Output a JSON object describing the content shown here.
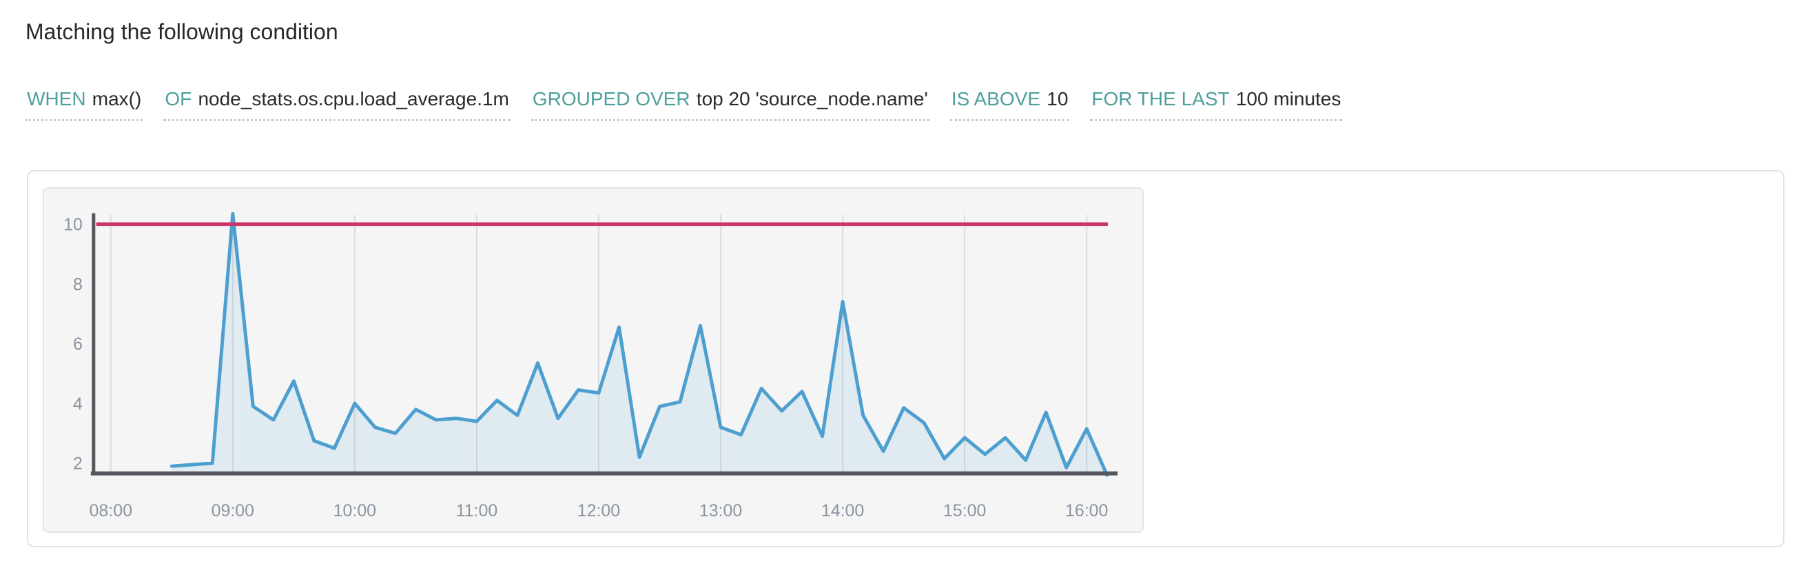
{
  "header": {
    "title": "Matching the following condition"
  },
  "expression": {
    "segments": [
      {
        "keyword": "WHEN",
        "value": "max()"
      },
      {
        "keyword": "OF",
        "value": "node_stats.os.cpu.load_average.1m"
      },
      {
        "keyword": "GROUPED OVER",
        "value": "top 20 'source_node.name'"
      },
      {
        "keyword": "IS ABOVE",
        "value": "10"
      },
      {
        "keyword": "FOR THE LAST",
        "value": "100 minutes"
      }
    ]
  },
  "colors": {
    "keyword_teal": "#4d9f9d",
    "value_text": "#2b2b2e",
    "threshold_line": "#cc3366",
    "series_line": "#4d9fcf",
    "series_fill": "rgba(77,159,207,0.12)",
    "axis": "#55575c",
    "grid": "#dcdcdc",
    "tick_label": "#8b95a0"
  },
  "chart_data": {
    "type": "line",
    "title": "",
    "xlabel": "",
    "ylabel": "",
    "x_ticks": [
      "08:00",
      "09:00",
      "10:00",
      "11:00",
      "12:00",
      "13:00",
      "14:00",
      "15:00",
      "16:00"
    ],
    "y_ticks": [
      2,
      4,
      6,
      8,
      10
    ],
    "ylim": [
      1.7,
      10.35
    ],
    "xlim_hours": [
      7.86,
      16.24
    ],
    "grid": true,
    "legend": "none",
    "threshold": 10,
    "series": [
      {
        "points": [
          [
            "08:30",
            1.9
          ],
          [
            "08:40",
            1.95
          ],
          [
            "08:50",
            2.0
          ],
          [
            "09:00",
            10.35
          ],
          [
            "09:10",
            3.9
          ],
          [
            "09:20",
            3.45
          ],
          [
            "09:30",
            4.75
          ],
          [
            "09:40",
            2.75
          ],
          [
            "09:50",
            2.5
          ],
          [
            "10:00",
            4.0
          ],
          [
            "10:10",
            3.2
          ],
          [
            "10:20",
            3.0
          ],
          [
            "10:30",
            3.8
          ],
          [
            "10:40",
            3.45
          ],
          [
            "10:50",
            3.5
          ],
          [
            "11:00",
            3.4
          ],
          [
            "11:10",
            4.1
          ],
          [
            "11:20",
            3.6
          ],
          [
            "11:30",
            5.35
          ],
          [
            "11:40",
            3.5
          ],
          [
            "11:50",
            4.45
          ],
          [
            "12:00",
            4.35
          ],
          [
            "12:10",
            6.55
          ],
          [
            "12:20",
            2.2
          ],
          [
            "12:30",
            3.9
          ],
          [
            "12:40",
            4.05
          ],
          [
            "12:50",
            6.6
          ],
          [
            "13:00",
            3.2
          ],
          [
            "13:10",
            2.95
          ],
          [
            "13:20",
            4.5
          ],
          [
            "13:30",
            3.75
          ],
          [
            "13:40",
            4.4
          ],
          [
            "13:50",
            2.9
          ],
          [
            "14:00",
            7.4
          ],
          [
            "14:10",
            3.6
          ],
          [
            "14:20",
            2.4
          ],
          [
            "14:30",
            3.85
          ],
          [
            "14:40",
            3.35
          ],
          [
            "14:50",
            2.15
          ],
          [
            "15:00",
            2.85
          ],
          [
            "15:10",
            2.3
          ],
          [
            "15:20",
            2.85
          ],
          [
            "15:30",
            2.1
          ],
          [
            "15:40",
            3.7
          ],
          [
            "15:50",
            1.85
          ],
          [
            "16:00",
            3.15
          ],
          [
            "16:10",
            1.6
          ]
        ]
      }
    ]
  }
}
